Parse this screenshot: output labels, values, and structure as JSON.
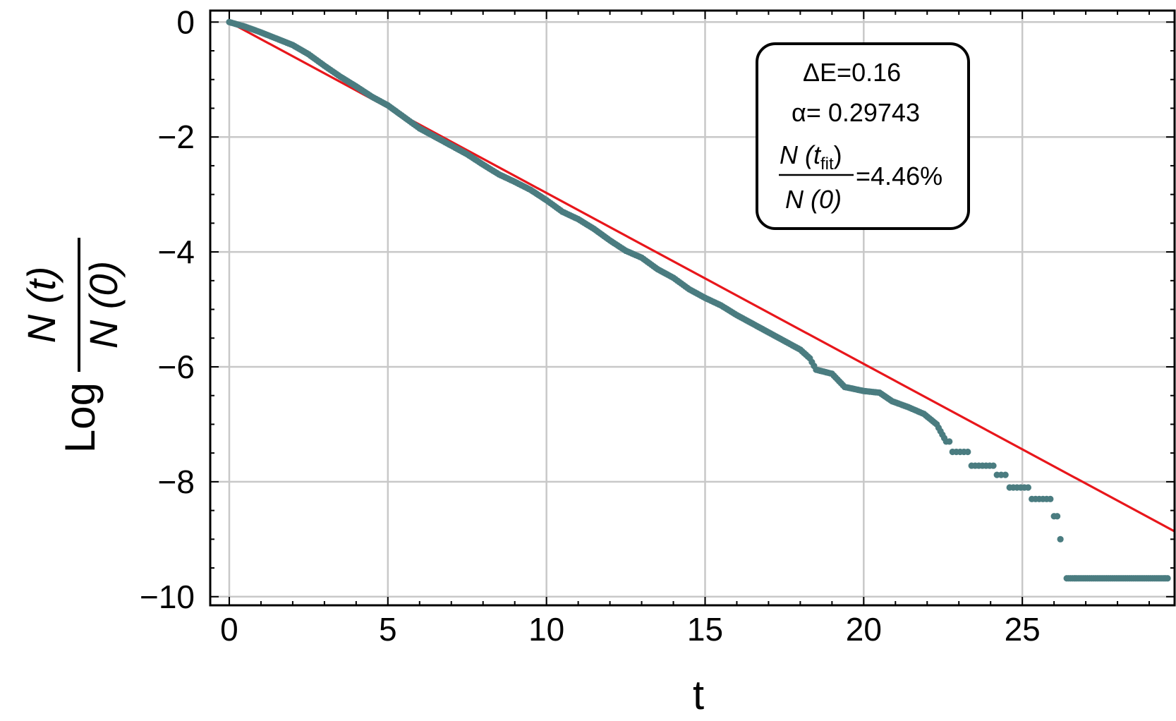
{
  "chart_data": {
    "type": "scatter",
    "xlabel": "t",
    "ylabel": {
      "prefix": "Log",
      "numerator": "N (t)",
      "denominator": "N (0)"
    },
    "xlim": [
      -0.6,
      29.8
    ],
    "ylim": [
      -10.15,
      0.2
    ],
    "x_ticks": [
      0,
      5,
      10,
      15,
      20,
      25
    ],
    "x_tick_labels": [
      "0",
      "5",
      "10",
      "15",
      "20",
      "25"
    ],
    "y_ticks": [
      0,
      -2,
      -4,
      -6,
      -8,
      -10
    ],
    "y_tick_labels": [
      "0",
      "−2",
      "−4",
      "−6",
      "−8",
      "−10"
    ],
    "grid": true,
    "series": [
      {
        "kind": "data",
        "color": "#4a7c80",
        "points": [
          [
            0,
            0
          ],
          [
            0.5,
            -0.08
          ],
          [
            1,
            -0.18
          ],
          [
            1.5,
            -0.29
          ],
          [
            2,
            -0.4
          ],
          [
            2.5,
            -0.56
          ],
          [
            3,
            -0.76
          ],
          [
            3.5,
            -0.95
          ],
          [
            4,
            -1.12
          ],
          [
            4.5,
            -1.3
          ],
          [
            5,
            -1.45
          ],
          [
            5.5,
            -1.65
          ],
          [
            6,
            -1.85
          ],
          [
            6.5,
            -2.0
          ],
          [
            7,
            -2.15
          ],
          [
            7.5,
            -2.3
          ],
          [
            8,
            -2.48
          ],
          [
            8.5,
            -2.65
          ],
          [
            9,
            -2.78
          ],
          [
            9.5,
            -2.92
          ],
          [
            10,
            -3.1
          ],
          [
            10.5,
            -3.3
          ],
          [
            11,
            -3.43
          ],
          [
            11.5,
            -3.6
          ],
          [
            12,
            -3.8
          ],
          [
            12.5,
            -3.98
          ],
          [
            13,
            -4.1
          ],
          [
            13.5,
            -4.3
          ],
          [
            14,
            -4.45
          ],
          [
            14.5,
            -4.65
          ],
          [
            15,
            -4.8
          ],
          [
            15.5,
            -4.93
          ],
          [
            16,
            -5.1
          ],
          [
            16.5,
            -5.25
          ],
          [
            17,
            -5.4
          ],
          [
            17.5,
            -5.55
          ],
          [
            18,
            -5.7
          ],
          [
            18.3,
            -5.85
          ],
          [
            18.5,
            -6.05
          ],
          [
            19,
            -6.12
          ],
          [
            19.4,
            -6.35
          ],
          [
            20,
            -6.42
          ],
          [
            20.5,
            -6.45
          ],
          [
            20.9,
            -6.6
          ],
          [
            21.4,
            -6.7
          ],
          [
            21.9,
            -6.82
          ],
          [
            22.3,
            -7.0
          ],
          [
            22.6,
            -7.3
          ],
          [
            22.8,
            -7.48
          ],
          [
            23.4,
            -7.72
          ],
          [
            24.2,
            -7.88
          ],
          [
            24.6,
            -8.1
          ],
          [
            25.3,
            -8.3
          ],
          [
            26,
            -8.6
          ],
          [
            26.2,
            -9.0
          ]
        ],
        "plateau": {
          "x_start": 26.4,
          "x_end": 29.6,
          "y": -9.68
        }
      },
      {
        "kind": "fit-line",
        "color": "#e8161b",
        "x": [
          0,
          29.8
        ],
        "y": [
          0,
          -8.863
        ]
      }
    ],
    "legend_box": {
      "delta_e": "ΔE=0.16",
      "alpha": "α= 0.29743",
      "fraction_numerator": "N (t",
      "fraction_numerator_sub": "fit",
      "fraction_numerator_close": ")",
      "fraction_denominator": "N (0)",
      "fraction_value": "=4.46%"
    }
  }
}
